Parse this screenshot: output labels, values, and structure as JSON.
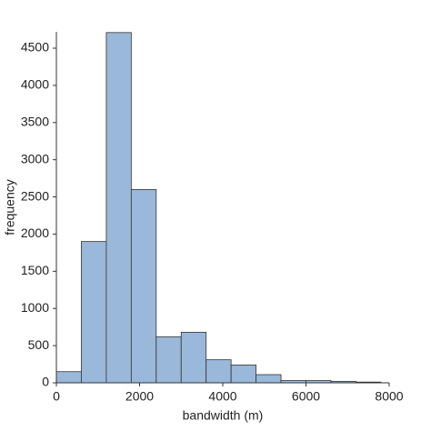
{
  "chart_data": {
    "type": "histogram",
    "xlabel": "bandwidth (m)",
    "ylabel": "frequency",
    "bins": [
      0,
      600,
      1200,
      1800,
      2400,
      3000,
      3600,
      4200,
      4800,
      5400,
      6000,
      6600,
      7200,
      7800
    ],
    "values": [
      150,
      1900,
      4710,
      2600,
      620,
      680,
      310,
      240,
      110,
      30,
      30,
      20,
      10
    ],
    "color": "#9ab8d9",
    "xlim": [
      0,
      8000
    ],
    "xticks": [
      0,
      2000,
      4000,
      6000,
      8000
    ],
    "ylim": [
      0,
      4720
    ],
    "yticks": [
      0,
      500,
      1000,
      1500,
      2000,
      2500,
      3000,
      3500,
      4000,
      4500
    ]
  }
}
